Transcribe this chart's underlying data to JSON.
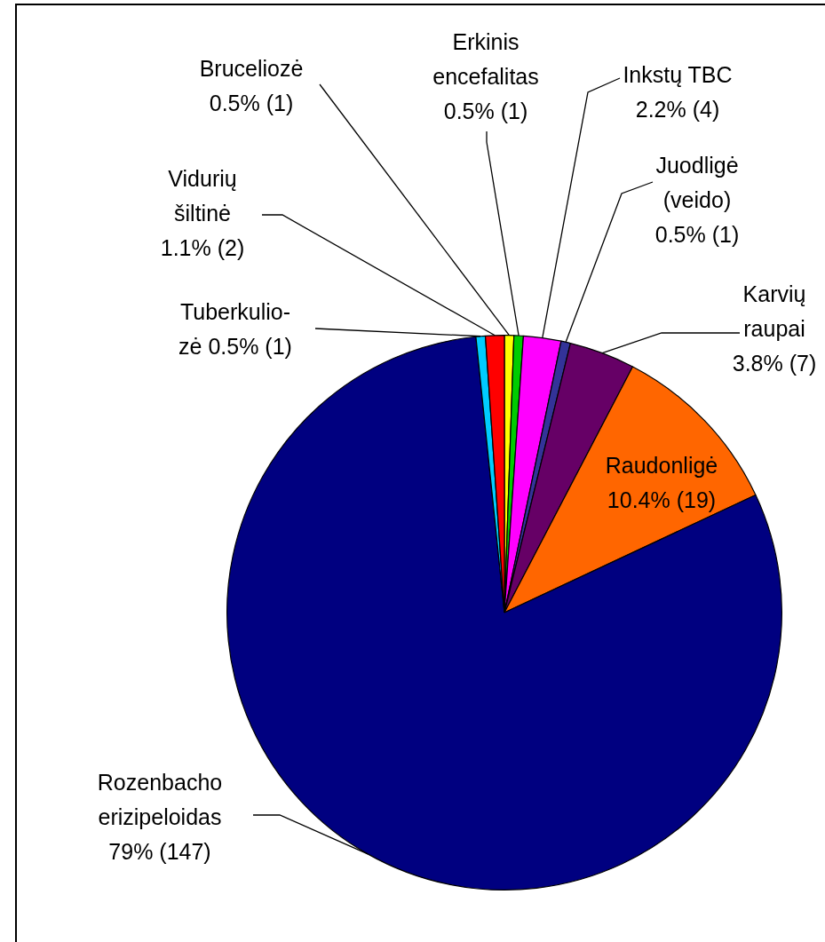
{
  "chart_data": {
    "type": "pie",
    "categories": [
      "Bruceliozė",
      "Erkinis encefalitas",
      "Inkstų TBC",
      "Juodligė (veido)",
      "Karvių raupai",
      "Raudonligė",
      "Rozenbacho erizipeloidas",
      "Tuberkulio-zė",
      "Vidurių šiltinė"
    ],
    "values": [
      1,
      1,
      4,
      1,
      7,
      19,
      147,
      1,
      2
    ],
    "value_labels": [
      "0.5% (1)",
      "0.5% (1)",
      "2.2% (4)",
      "0.5% (1)",
      "3.8% (7)",
      "10.4% (19)",
      "79% (147)",
      "0.5% (1)",
      "1.1% (2)"
    ],
    "colors": [
      "#ffff00",
      "#00cc00",
      "#ff00ff",
      "#333399",
      "#660066",
      "#ff6600",
      "#000080",
      "#00ccff",
      "#ff0000"
    ]
  }
}
